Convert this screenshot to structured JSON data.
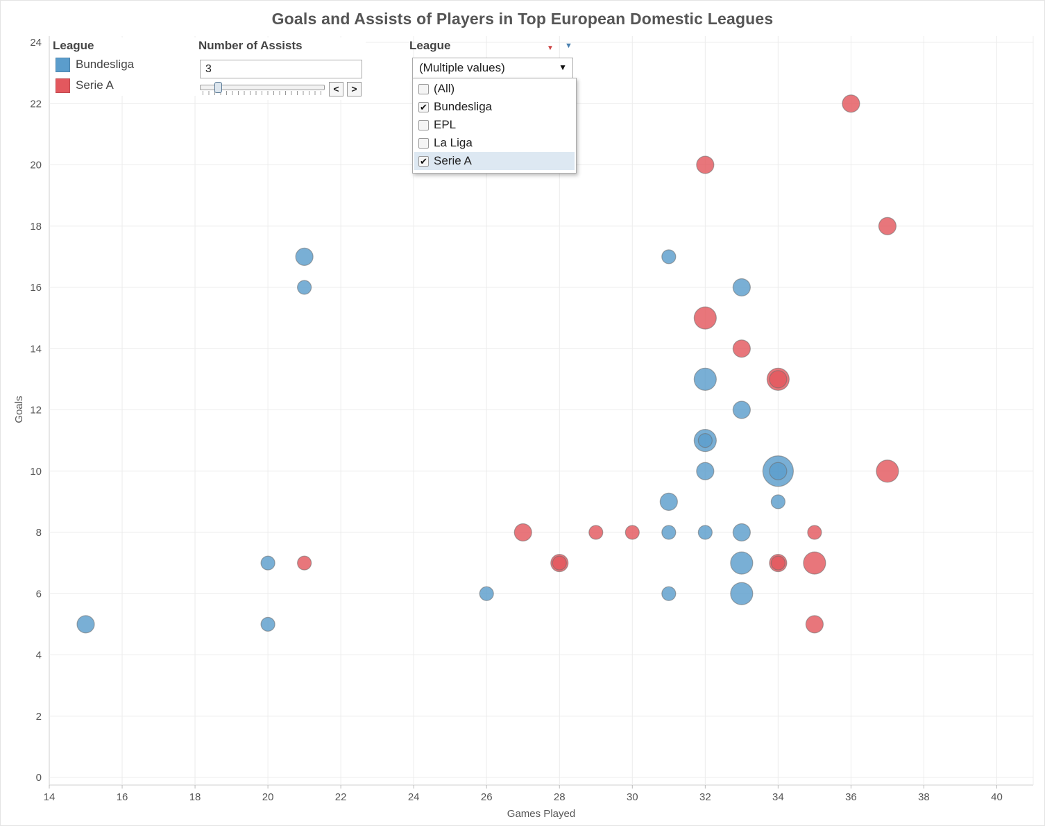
{
  "colors": {
    "bundesliga": "#5b9dcc",
    "serie_a": "#e3585e"
  },
  "legend": {
    "title": "League",
    "items": [
      {
        "label": "Bundesliga",
        "color": "#5b9dcc"
      },
      {
        "label": "Serie A",
        "color": "#e3585e"
      }
    ]
  },
  "assists_filter": {
    "title": "Number of Assists",
    "value": "3"
  },
  "league_filter": {
    "title": "League",
    "selected_label": "(Multiple values)",
    "options": [
      {
        "label": "(All)",
        "checked": false
      },
      {
        "label": "Bundesliga",
        "checked": true
      },
      {
        "label": "EPL",
        "checked": false
      },
      {
        "label": "La Liga",
        "checked": false
      },
      {
        "label": "Serie A",
        "checked": true
      }
    ]
  },
  "chart_data": {
    "type": "scatter",
    "title": "Goals and Assists of Players in Top European Domestic Leagues",
    "xlabel": "Games Played",
    "ylabel": "Goals",
    "xlim": [
      14,
      41
    ],
    "ylim": [
      0,
      24
    ],
    "xticks": [
      14,
      16,
      18,
      20,
      22,
      24,
      26,
      28,
      30,
      32,
      34,
      36,
      38,
      40
    ],
    "yticks": [
      0,
      2,
      4,
      6,
      8,
      10,
      12,
      14,
      16,
      18,
      20,
      22,
      24
    ],
    "grid": true,
    "legend_position": "top-left",
    "series": [
      {
        "name": "Bundesliga",
        "color": "#5b9dcc",
        "points": [
          {
            "x": 15,
            "y": 5,
            "size": "medium"
          },
          {
            "x": 20,
            "y": 7,
            "size": "small"
          },
          {
            "x": 20,
            "y": 5,
            "size": "small"
          },
          {
            "x": 21,
            "y": 17,
            "size": "medium"
          },
          {
            "x": 21,
            "y": 16,
            "size": "small"
          },
          {
            "x": 26,
            "y": 6,
            "size": "small"
          },
          {
            "x": 31,
            "y": 17,
            "size": "small"
          },
          {
            "x": 31,
            "y": 9,
            "size": "medium"
          },
          {
            "x": 31,
            "y": 8,
            "size": "small"
          },
          {
            "x": 31,
            "y": 6,
            "size": "small"
          },
          {
            "x": 32,
            "y": 13,
            "size": "large"
          },
          {
            "x": 32,
            "y": 11,
            "size": "large"
          },
          {
            "x": 32,
            "y": 11,
            "size": "small"
          },
          {
            "x": 32,
            "y": 10,
            "size": "medium"
          },
          {
            "x": 32,
            "y": 8,
            "size": "small"
          },
          {
            "x": 33,
            "y": 16,
            "size": "medium"
          },
          {
            "x": 33,
            "y": 12,
            "size": "medium"
          },
          {
            "x": 33,
            "y": 8,
            "size": "medium"
          },
          {
            "x": 33,
            "y": 7,
            "size": "large"
          },
          {
            "x": 33,
            "y": 6,
            "size": "large"
          },
          {
            "x": 34,
            "y": 10,
            "size": "xlarge"
          },
          {
            "x": 34,
            "y": 10,
            "size": "medium"
          },
          {
            "x": 34,
            "y": 9,
            "size": "small"
          }
        ]
      },
      {
        "name": "Serie A",
        "color": "#e3585e",
        "points": [
          {
            "x": 21,
            "y": 7,
            "size": "small"
          },
          {
            "x": 27,
            "y": 8,
            "size": "medium"
          },
          {
            "x": 28,
            "y": 7,
            "size": "medium"
          },
          {
            "x": 28,
            "y": 7,
            "size": "small"
          },
          {
            "x": 29,
            "y": 8,
            "size": "small"
          },
          {
            "x": 30,
            "y": 8,
            "size": "small"
          },
          {
            "x": 32,
            "y": 20,
            "size": "medium"
          },
          {
            "x": 32,
            "y": 15,
            "size": "large"
          },
          {
            "x": 33,
            "y": 14,
            "size": "medium"
          },
          {
            "x": 34,
            "y": 13,
            "size": "large"
          },
          {
            "x": 34,
            "y": 13,
            "size": "medium"
          },
          {
            "x": 34,
            "y": 7,
            "size": "medium"
          },
          {
            "x": 34,
            "y": 7,
            "size": "small"
          },
          {
            "x": 35,
            "y": 8,
            "size": "small"
          },
          {
            "x": 35,
            "y": 7,
            "size": "large"
          },
          {
            "x": 35,
            "y": 5,
            "size": "medium"
          },
          {
            "x": 36,
            "y": 22,
            "size": "medium"
          },
          {
            "x": 37,
            "y": 18,
            "size": "medium"
          },
          {
            "x": 37,
            "y": 10,
            "size": "large"
          }
        ]
      }
    ]
  }
}
